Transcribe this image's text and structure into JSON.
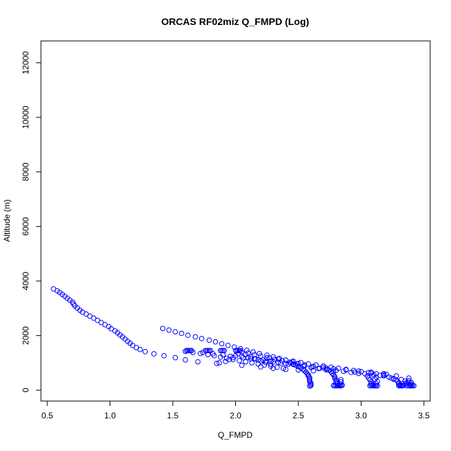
{
  "chart_data": {
    "type": "scatter",
    "title": "ORCAS RF02miz Q_FMPD (Log)",
    "xlabel": "Q_FMPD",
    "ylabel": "Altitude (m)",
    "xlim": [
      0.45,
      3.55
    ],
    "ylim": [
      -400,
      12800
    ],
    "xticks": [
      0.5,
      1.0,
      1.5,
      2.0,
      2.5,
      3.0,
      3.5
    ],
    "xtick_labels": [
      "0.5",
      "1.0",
      "1.5",
      "2.0",
      "2.5",
      "3.0",
      "3.5"
    ],
    "yticks": [
      0,
      2000,
      4000,
      6000,
      8000,
      10000,
      12000
    ],
    "ytick_labels": [
      "0",
      "2000",
      "4000",
      "6000",
      "8000",
      "10000",
      "12000"
    ],
    "marker": "open-circle",
    "color": "#0000ff",
    "grid": false,
    "legend": "none",
    "points": [
      [
        0.55,
        3710
      ],
      [
        0.58,
        3640
      ],
      [
        0.6,
        3580
      ],
      [
        0.62,
        3510
      ],
      [
        0.64,
        3440
      ],
      [
        0.66,
        3370
      ],
      [
        0.68,
        3300
      ],
      [
        0.7,
        3230
      ],
      [
        0.71,
        3160
      ],
      [
        0.72,
        3090
      ],
      [
        0.74,
        3010
      ],
      [
        0.76,
        2930
      ],
      [
        0.78,
        2860
      ],
      [
        0.81,
        2790
      ],
      [
        0.84,
        2710
      ],
      [
        0.87,
        2640
      ],
      [
        0.9,
        2560
      ],
      [
        0.93,
        2480
      ],
      [
        0.96,
        2400
      ],
      [
        0.99,
        2330
      ],
      [
        1.01,
        2250
      ],
      [
        1.04,
        2170
      ],
      [
        1.06,
        2100
      ],
      [
        1.08,
        2020
      ],
      [
        1.1,
        1950
      ],
      [
        1.12,
        1870
      ],
      [
        1.14,
        1790
      ],
      [
        1.16,
        1720
      ],
      [
        1.18,
        1640
      ],
      [
        1.21,
        1560
      ],
      [
        1.24,
        1490
      ],
      [
        1.28,
        1410
      ],
      [
        1.35,
        1330
      ],
      [
        1.43,
        1260
      ],
      [
        1.52,
        1190
      ],
      [
        1.6,
        1110
      ],
      [
        1.7,
        1040
      ],
      [
        1.85,
        980
      ],
      [
        2.05,
        910
      ],
      [
        2.2,
        850
      ],
      [
        2.3,
        800
      ],
      [
        2.4,
        760
      ],
      [
        2.5,
        740
      ],
      [
        2.62,
        710
      ],
      [
        2.78,
        690
      ],
      [
        2.95,
        660
      ],
      [
        3.08,
        620
      ],
      [
        3.2,
        580
      ],
      [
        1.42,
        2260
      ],
      [
        1.47,
        2200
      ],
      [
        1.52,
        2140
      ],
      [
        1.57,
        2080
      ],
      [
        1.62,
        2010
      ],
      [
        1.68,
        1950
      ],
      [
        1.73,
        1890
      ],
      [
        1.79,
        1830
      ],
      [
        1.84,
        1770
      ],
      [
        1.89,
        1700
      ],
      [
        1.94,
        1640
      ],
      [
        1.99,
        1580
      ],
      [
        2.04,
        1520
      ],
      [
        2.09,
        1460
      ],
      [
        2.14,
        1400
      ],
      [
        2.19,
        1340
      ],
      [
        2.25,
        1280
      ],
      [
        2.3,
        1220
      ],
      [
        2.35,
        1160
      ],
      [
        2.4,
        1100
      ],
      [
        2.45,
        1040
      ],
      [
        2.5,
        980
      ],
      [
        2.55,
        920
      ],
      [
        2.62,
        870
      ],
      [
        2.7,
        820
      ],
      [
        2.78,
        780
      ],
      [
        2.88,
        740
      ],
      [
        2.98,
        700
      ],
      [
        3.08,
        660
      ],
      [
        3.18,
        600
      ],
      [
        3.28,
        520
      ],
      [
        3.38,
        440
      ],
      [
        1.61,
        1450
      ],
      [
        1.62,
        1450
      ],
      [
        1.63,
        1450
      ],
      [
        1.64,
        1450
      ],
      [
        1.65,
        1450
      ],
      [
        1.76,
        1450
      ],
      [
        1.77,
        1450
      ],
      [
        1.78,
        1450
      ],
      [
        1.79,
        1450
      ],
      [
        1.8,
        1450
      ],
      [
        1.88,
        1450
      ],
      [
        1.89,
        1450
      ],
      [
        1.9,
        1450
      ],
      [
        1.91,
        1450
      ],
      [
        2.0,
        1450
      ],
      [
        2.01,
        1450
      ],
      [
        2.02,
        1450
      ],
      [
        2.03,
        1450
      ],
      [
        2.04,
        1450
      ],
      [
        1.6,
        1420
      ],
      [
        1.66,
        1380
      ],
      [
        1.72,
        1340
      ],
      [
        1.78,
        1300
      ],
      [
        1.83,
        1260
      ],
      [
        1.88,
        1210
      ],
      [
        1.93,
        1170
      ],
      [
        1.98,
        1120
      ],
      [
        2.03,
        1080
      ],
      [
        2.08,
        1040
      ],
      [
        2.13,
        1000
      ],
      [
        2.18,
        960
      ],
      [
        2.23,
        920
      ],
      [
        2.28,
        880
      ],
      [
        2.33,
        840
      ],
      [
        2.38,
        800
      ],
      [
        1.74,
        1380
      ],
      [
        1.82,
        1330
      ],
      [
        1.9,
        1290
      ],
      [
        1.96,
        1240
      ],
      [
        2.06,
        1190
      ],
      [
        2.12,
        1150
      ],
      [
        2.18,
        1110
      ],
      [
        2.24,
        1070
      ],
      [
        2.3,
        1030
      ],
      [
        2.36,
        990
      ],
      [
        2.42,
        950
      ],
      [
        2.48,
        910
      ],
      [
        2.54,
        870
      ],
      [
        2.6,
        830
      ],
      [
        2.66,
        790
      ],
      [
        2.72,
        750
      ],
      [
        1.87,
        1000
      ],
      [
        1.92,
        1050
      ],
      [
        1.95,
        1120
      ],
      [
        1.98,
        1190
      ],
      [
        2.0,
        1260
      ],
      [
        2.02,
        1330
      ],
      [
        2.05,
        1390
      ],
      [
        2.08,
        1300
      ],
      [
        2.12,
        1220
      ],
      [
        2.16,
        1140
      ],
      [
        2.2,
        1070
      ],
      [
        2.24,
        1010
      ],
      [
        2.28,
        960
      ],
      [
        2.1,
        1360
      ],
      [
        2.15,
        1300
      ],
      [
        2.2,
        1250
      ],
      [
        2.25,
        1190
      ],
      [
        2.31,
        1130
      ],
      [
        2.37,
        1080
      ],
      [
        2.43,
        1020
      ],
      [
        2.49,
        960
      ],
      [
        2.55,
        900
      ],
      [
        2.61,
        850
      ],
      [
        2.67,
        800
      ],
      [
        2.73,
        760
      ],
      [
        2.8,
        720
      ],
      [
        2.86,
        690
      ],
      [
        2.92,
        650
      ],
      [
        2.98,
        610
      ],
      [
        2.05,
        1250
      ],
      [
        2.1,
        1200
      ],
      [
        2.15,
        1150
      ],
      [
        2.22,
        1110
      ],
      [
        2.28,
        1060
      ],
      [
        2.34,
        1020
      ],
      [
        2.4,
        980
      ],
      [
        2.46,
        940
      ],
      [
        2.27,
        1180
      ],
      [
        2.34,
        1140
      ],
      [
        2.4,
        1100
      ],
      [
        2.46,
        1060
      ],
      [
        2.52,
        1010
      ],
      [
        2.58,
        960
      ],
      [
        2.64,
        920
      ],
      [
        2.7,
        880
      ],
      [
        2.76,
        840
      ],
      [
        2.82,
        800
      ],
      [
        2.88,
        760
      ],
      [
        2.94,
        720
      ],
      [
        3.0,
        680
      ],
      [
        3.06,
        640
      ],
      [
        3.12,
        600
      ],
      [
        3.18,
        560
      ],
      [
        2.44,
        1000
      ],
      [
        2.46,
        960
      ],
      [
        2.48,
        910
      ],
      [
        2.5,
        860
      ],
      [
        2.52,
        810
      ],
      [
        2.54,
        760
      ],
      [
        2.55,
        710
      ],
      [
        2.56,
        660
      ],
      [
        2.57,
        610
      ],
      [
        2.58,
        560
      ],
      [
        2.58,
        510
      ],
      [
        2.59,
        460
      ],
      [
        2.59,
        410
      ],
      [
        2.59,
        360
      ],
      [
        2.59,
        310
      ],
      [
        2.6,
        260
      ],
      [
        2.6,
        210
      ],
      [
        2.6,
        170
      ],
      [
        2.59,
        150
      ],
      [
        2.7,
        880
      ],
      [
        2.72,
        810
      ],
      [
        2.74,
        740
      ],
      [
        2.76,
        680
      ],
      [
        2.77,
        620
      ],
      [
        2.78,
        560
      ],
      [
        2.79,
        500
      ],
      [
        2.79,
        440
      ],
      [
        2.8,
        380
      ],
      [
        2.8,
        320
      ],
      [
        2.81,
        270
      ],
      [
        2.81,
        220
      ],
      [
        2.82,
        190
      ],
      [
        2.82,
        170
      ],
      [
        2.83,
        160
      ],
      [
        2.84,
        160
      ],
      [
        2.78,
        170
      ],
      [
        2.79,
        160
      ],
      [
        2.8,
        160
      ],
      [
        2.81,
        160
      ],
      [
        2.85,
        180
      ],
      [
        2.84,
        220
      ],
      [
        2.84,
        300
      ],
      [
        2.84,
        380
      ],
      [
        3.03,
        600
      ],
      [
        3.05,
        520
      ],
      [
        3.06,
        440
      ],
      [
        3.07,
        370
      ],
      [
        3.08,
        300
      ],
      [
        3.08,
        240
      ],
      [
        3.09,
        190
      ],
      [
        3.09,
        170
      ],
      [
        3.1,
        160
      ],
      [
        3.11,
        160
      ],
      [
        3.12,
        160
      ],
      [
        3.13,
        160
      ],
      [
        3.08,
        160
      ],
      [
        3.07,
        160
      ],
      [
        3.12,
        240
      ],
      [
        3.13,
        320
      ],
      [
        3.11,
        400
      ],
      [
        3.12,
        480
      ],
      [
        3.1,
        560
      ],
      [
        3.26,
        420
      ],
      [
        3.28,
        370
      ],
      [
        3.29,
        320
      ],
      [
        3.3,
        270
      ],
      [
        3.3,
        230
      ],
      [
        3.31,
        200
      ],
      [
        3.31,
        170
      ],
      [
        3.3,
        160
      ],
      [
        3.31,
        160
      ],
      [
        3.32,
        160
      ],
      [
        3.33,
        160
      ],
      [
        3.34,
        180
      ],
      [
        3.35,
        230
      ],
      [
        3.37,
        290
      ],
      [
        3.38,
        350
      ],
      [
        3.4,
        280
      ],
      [
        3.4,
        220
      ],
      [
        3.4,
        180
      ],
      [
        3.4,
        160
      ],
      [
        3.41,
        160
      ],
      [
        3.42,
        160
      ],
      [
        3.39,
        160
      ],
      [
        3.38,
        160
      ],
      [
        3.36,
        160
      ],
      [
        3.22,
        480
      ],
      [
        3.24,
        440
      ],
      [
        3.26,
        400
      ],
      [
        3.32,
        390
      ],
      [
        3.35,
        330
      ],
      [
        3.36,
        260
      ],
      [
        3.18,
        520
      ],
      [
        3.15,
        540
      ]
    ]
  }
}
